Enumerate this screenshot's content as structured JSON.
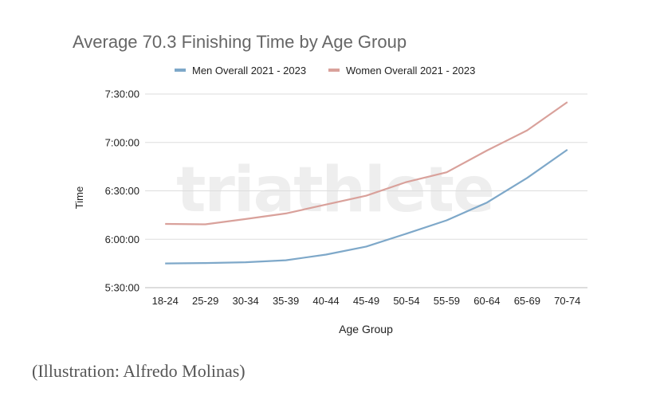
{
  "chart_data": {
    "type": "line",
    "title": "Average 70.3 Finishing Time by Age Group",
    "xlabel": "Age Group",
    "ylabel": "Time",
    "categories": [
      "18-24",
      "25-29",
      "30-34",
      "35-39",
      "40-44",
      "45-49",
      "50-54",
      "55-59",
      "60-64",
      "65-69",
      "70-74"
    ],
    "y_ticks": [
      "5:30:00",
      "6:00:00",
      "6:30:00",
      "7:00:00",
      "7:30:00"
    ],
    "ylim_minutes": [
      330,
      450
    ],
    "grid": true,
    "legend_position": "top",
    "series": [
      {
        "name": "Men Overall 2021 - 2023",
        "color": "#7ea8c9",
        "values": [
          "5:45:00",
          "5:45:15",
          "5:45:45",
          "5:47:00",
          "5:50:30",
          "5:55:30",
          "6:03:30",
          "6:11:45",
          "6:22:45",
          "6:38:00",
          "6:55:30"
        ]
      },
      {
        "name": "Women Overall 2021 - 2023",
        "color": "#d9a19b",
        "values": [
          "6:09:30",
          "6:09:15",
          "6:12:30",
          "6:16:00",
          "6:21:30",
          "6:27:00",
          "6:35:30",
          "6:41:30",
          "6:55:00",
          "7:07:30",
          "7:25:00"
        ]
      }
    ]
  },
  "watermark": "triathlete",
  "caption": "(Illustration: Alfredo Molinas)"
}
